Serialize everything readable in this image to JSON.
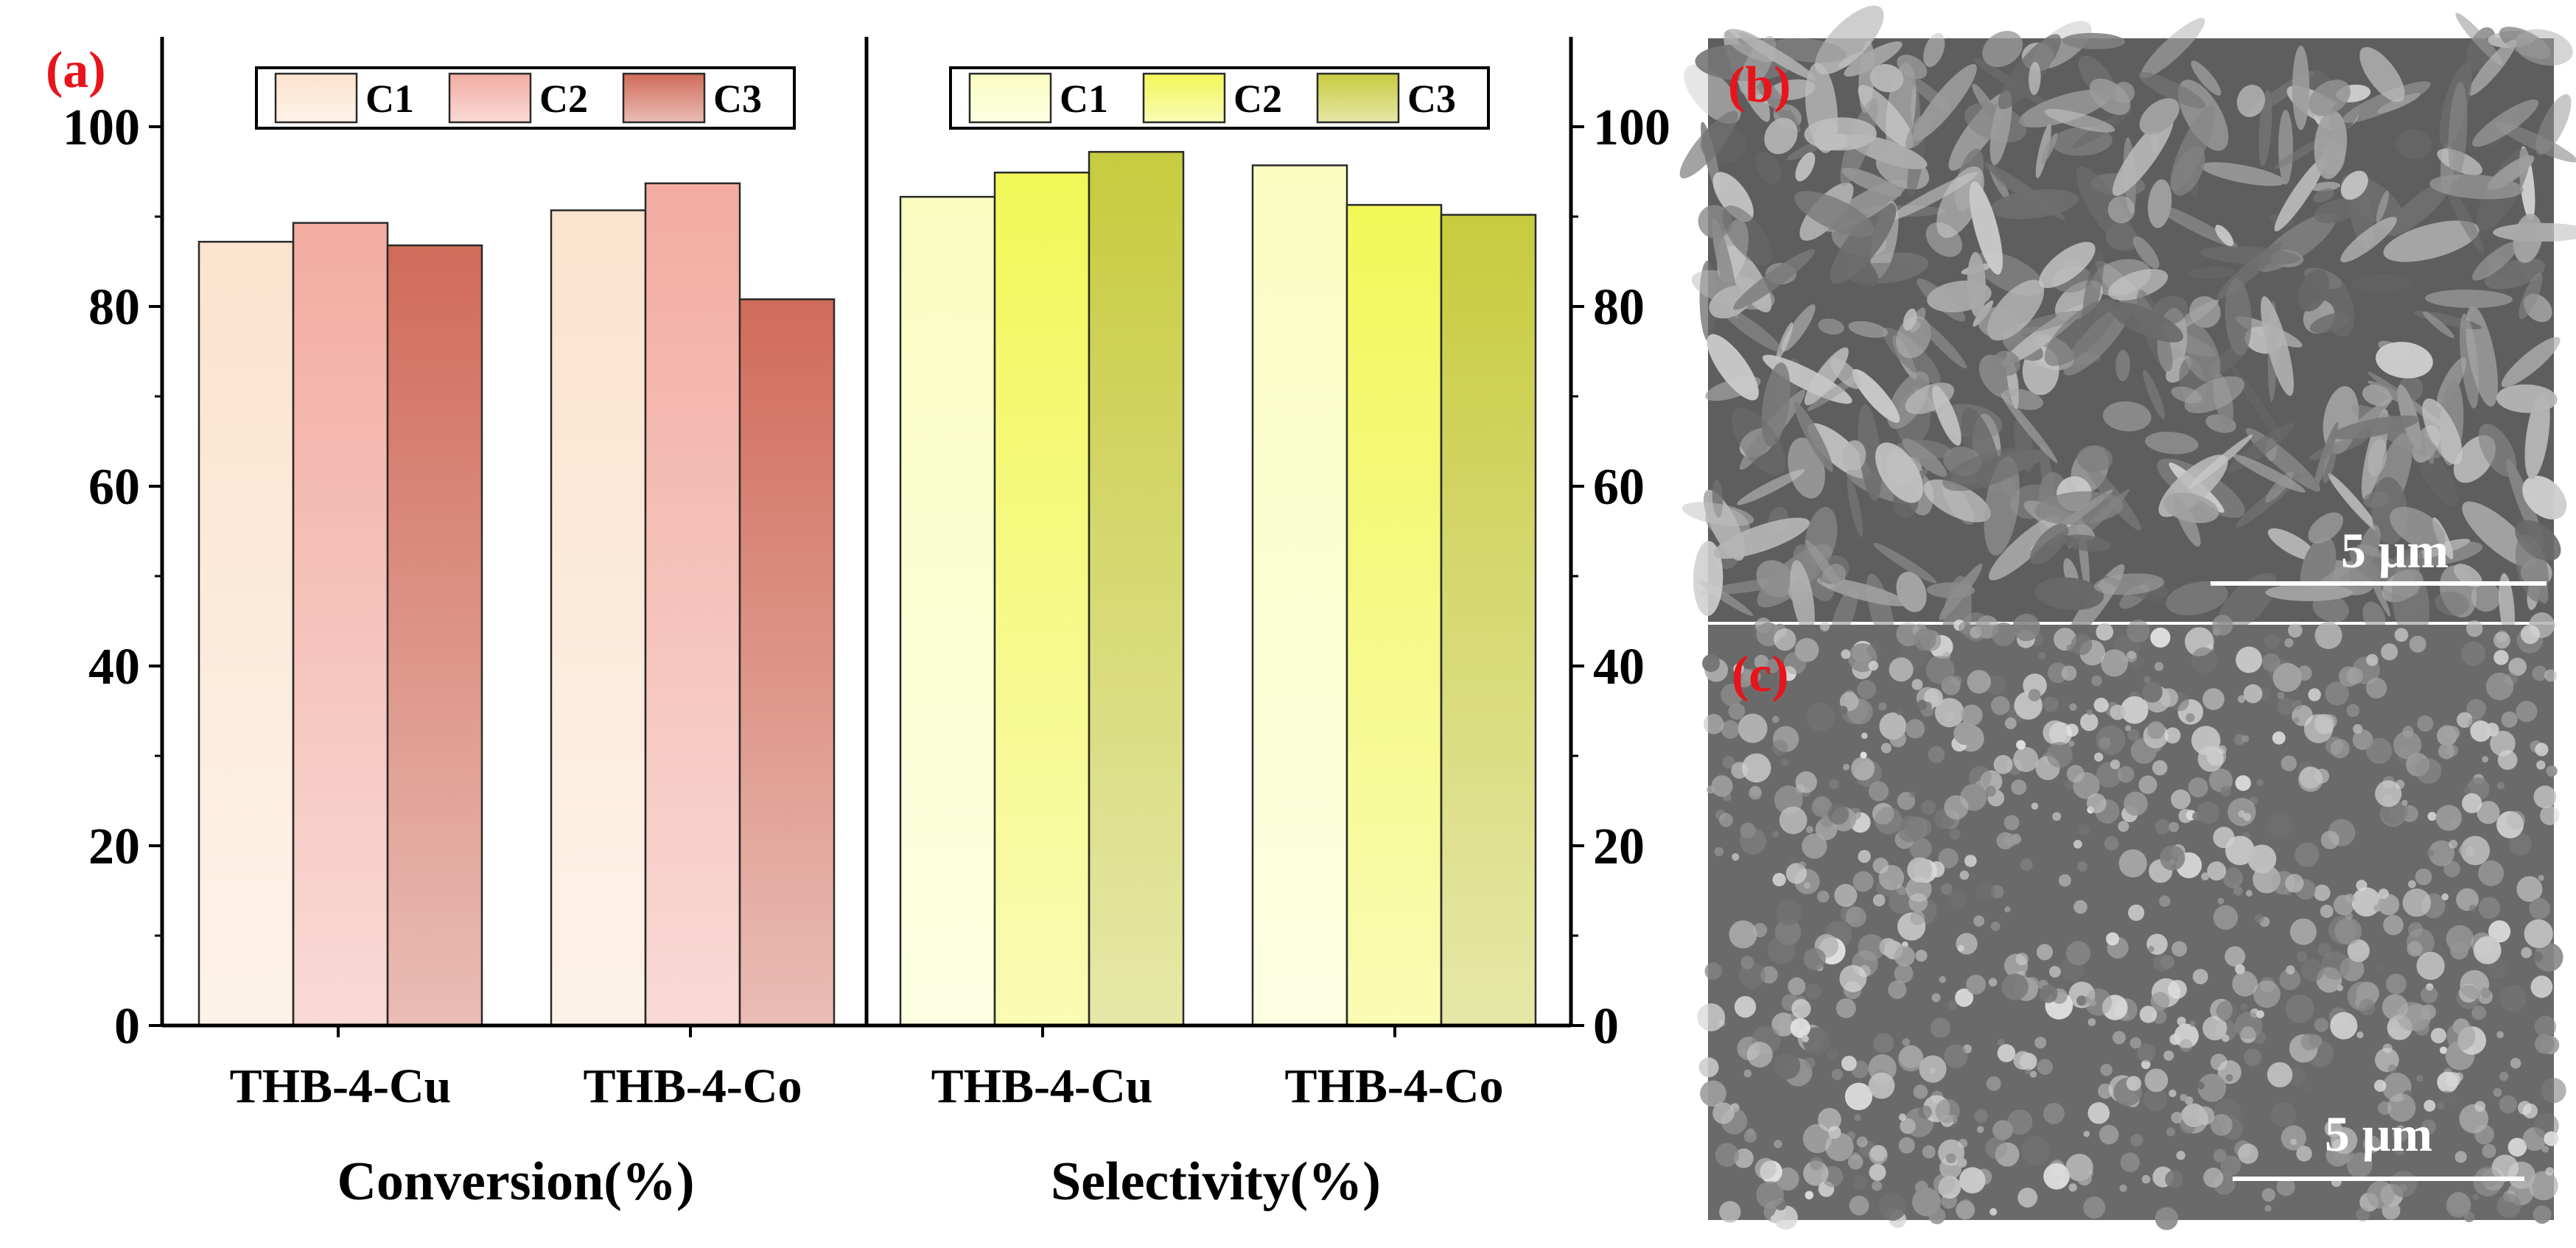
{
  "panels": {
    "a": "(a)",
    "b": "(b)",
    "c": "(c)"
  },
  "sem": {
    "scale_b": "5 μm",
    "scale_c": "5 μm"
  },
  "colors": {
    "conversion": [
      "#fbe3cd",
      "#f2aca2",
      "#d06b5a"
    ],
    "selectivity": [
      "#f9fdc0",
      "#f2f758",
      "#c7cb3e"
    ],
    "label_red": "#e8141b"
  },
  "chart_data": [
    {
      "type": "bar",
      "title": "",
      "xlabel": "Conversion(%)",
      "ylabel": "",
      "ylim": [
        0,
        110
      ],
      "yticks": [
        0,
        20,
        40,
        60,
        80,
        100
      ],
      "y_axis_side": "left",
      "categories": [
        "THB-4-Cu",
        "THB-4-Co"
      ],
      "series": [
        {
          "name": "C1",
          "values": [
            87.2,
            90.7
          ]
        },
        {
          "name": "C2",
          "values": [
            89.3,
            93.7
          ]
        },
        {
          "name": "C3",
          "values": [
            86.8,
            80.8
          ]
        }
      ],
      "legend": "top"
    },
    {
      "type": "bar",
      "title": "",
      "xlabel": "Selectivity(%)",
      "ylabel": "",
      "ylim": [
        0,
        110
      ],
      "yticks": [
        0,
        20,
        40,
        60,
        80,
        100
      ],
      "y_axis_side": "right",
      "categories": [
        "THB-4-Cu",
        "THB-4-Co"
      ],
      "series": [
        {
          "name": "C1",
          "values": [
            92.2,
            95.7
          ]
        },
        {
          "name": "C2",
          "values": [
            94.9,
            91.3
          ]
        },
        {
          "name": "C3",
          "values": [
            97.2,
            90.2
          ]
        }
      ],
      "legend": "top"
    }
  ]
}
